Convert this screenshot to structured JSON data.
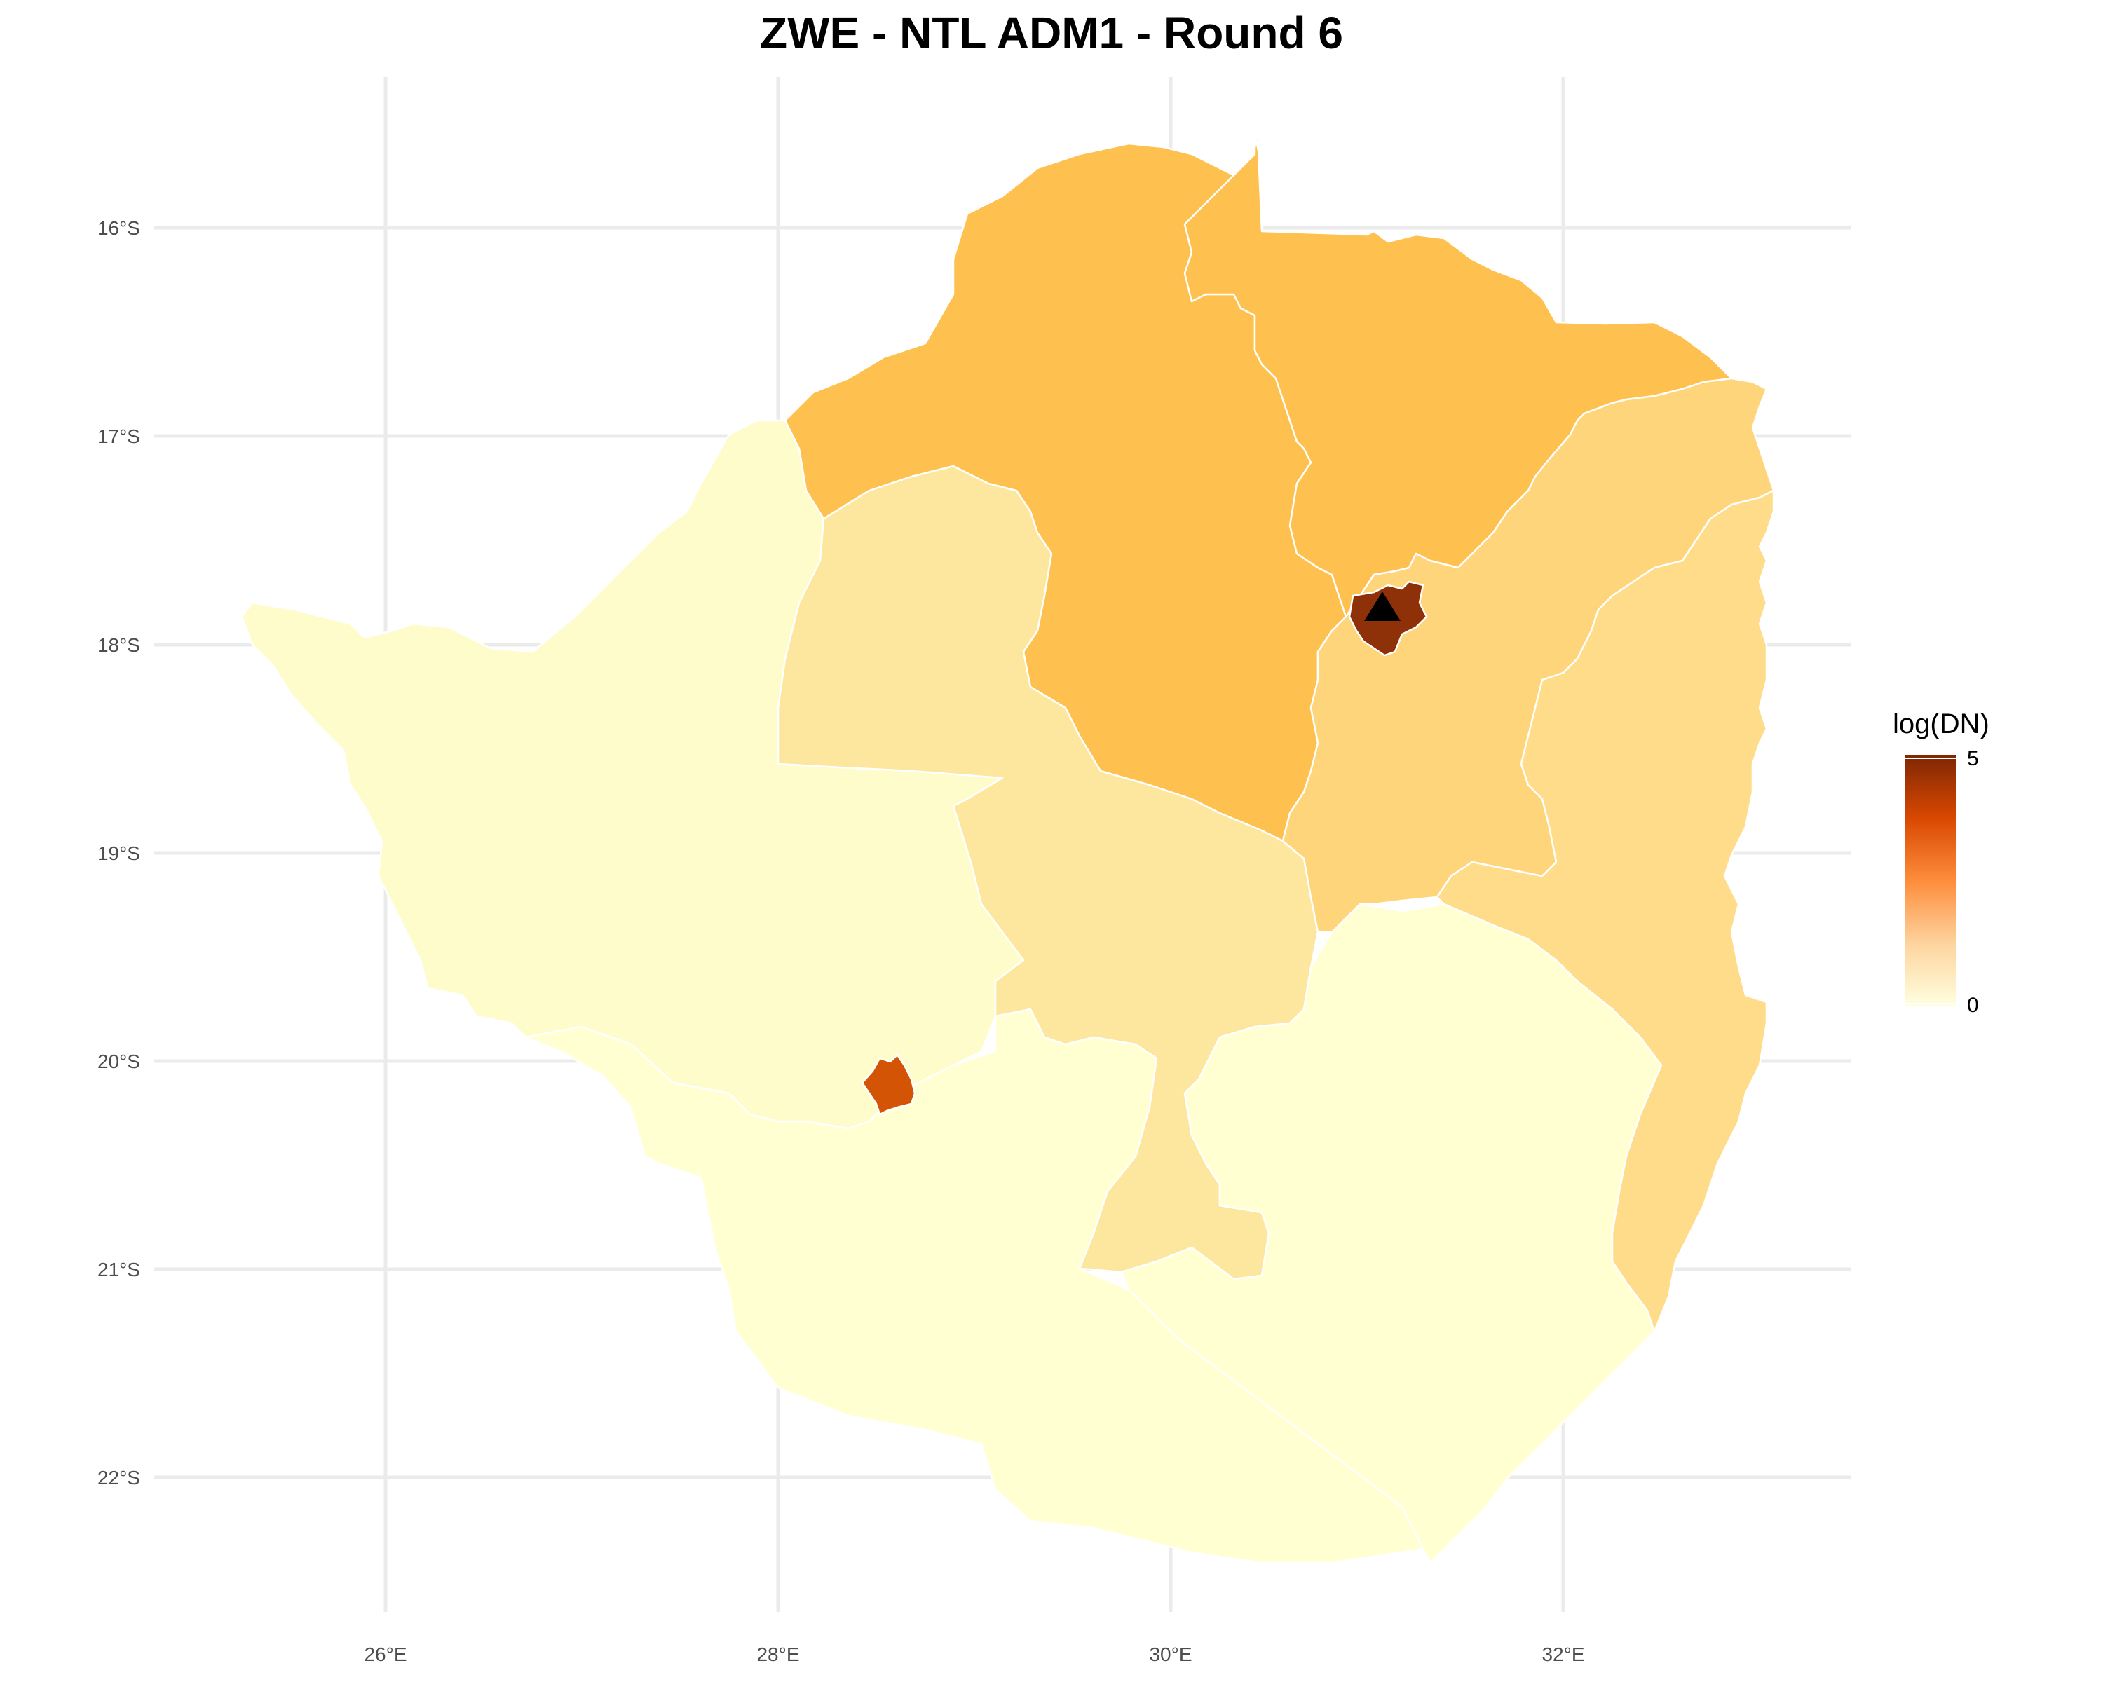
{
  "title": "ZWE - NTL ADM1 - Round 6",
  "axes": {
    "lon_ticks": [
      "26°E",
      "28°E",
      "30°E",
      "32°E"
    ],
    "lat_ticks": [
      "16°S",
      "17°S",
      "18°S",
      "19°S",
      "20°S",
      "21°S",
      "22°S"
    ]
  },
  "legend": {
    "title": "log(DN)",
    "max_label": "5",
    "min_label": "0",
    "gradient": [
      "#7f2704",
      "#d94801",
      "#fd8d3c",
      "#fdd49e",
      "#ffffe0"
    ],
    "placement": "right"
  },
  "regions": [
    {
      "id": "matabeleland-north",
      "value_color": "#fffccc"
    },
    {
      "id": "mashonaland-west",
      "value_color": "#fec04f"
    },
    {
      "id": "mashonaland-central",
      "value_color": "#fec04f"
    },
    {
      "id": "midlands",
      "value_color": "#fde69d"
    },
    {
      "id": "mashonaland-east",
      "value_color": "#fed57a"
    },
    {
      "id": "manicaland",
      "value_color": "#fedc8a"
    },
    {
      "id": "matabeleland-south",
      "value_color": "#ffffd2"
    },
    {
      "id": "masvingo",
      "value_color": "#ffffd2"
    },
    {
      "id": "harare",
      "value_color": "#8e3008"
    },
    {
      "id": "bulawayo",
      "value_color": "#d35405"
    }
  ],
  "marker": {
    "type": "triangle",
    "color": "#000000"
  }
}
